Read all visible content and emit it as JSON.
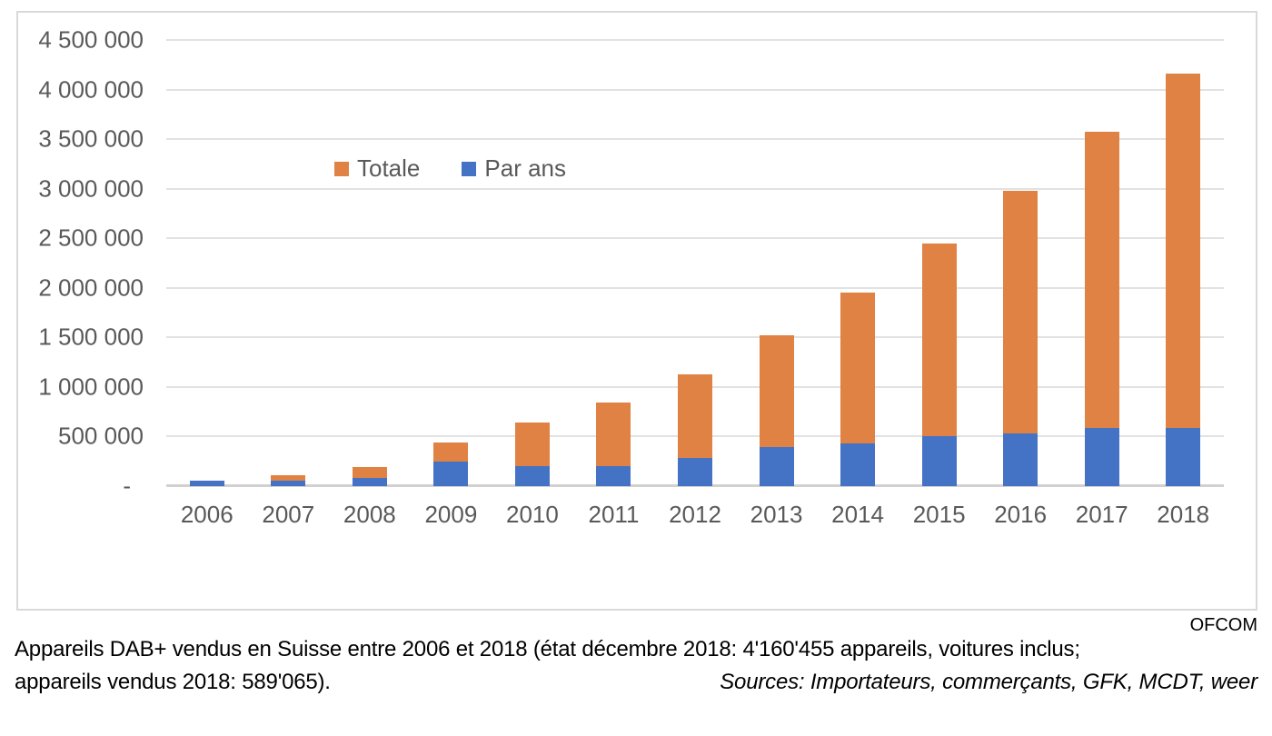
{
  "chart": {
    "source_label": "OFCOM",
    "legend": [
      {
        "id": "totale",
        "label": "Totale",
        "color": "#DF8243"
      },
      {
        "id": "par-ans",
        "label": "Par ans",
        "color": "#4472C4"
      }
    ],
    "y_axis": {
      "tick_labels": [
        "4 500 000",
        "4 000 000",
        "3 500 000",
        "3 000 000",
        "2 500 000",
        "2 000 000",
        "1 500 000",
        "1 000 000",
        "500 000",
        "-"
      ],
      "max": 4500000,
      "step": 500000
    }
  },
  "chart_data": {
    "type": "bar",
    "subtype": "overlapped-cumulative",
    "title": "",
    "xlabel": "",
    "ylabel": "",
    "ylim": [
      0,
      4500000
    ],
    "grid": true,
    "legend_position": "top-inside-left",
    "categories": [
      "2006",
      "2007",
      "2008",
      "2009",
      "2010",
      "2011",
      "2012",
      "2013",
      "2014",
      "2015",
      "2016",
      "2017",
      "2018"
    ],
    "series": [
      {
        "name": "Totale",
        "color": "#DF8243",
        "meaning": "cumulative total of DAB+ devices sold (bar top equals this value)",
        "values": [
          58000,
          113000,
          193000,
          438000,
          638000,
          843000,
          1123000,
          1518000,
          1948000,
          2448000,
          2983000,
          3571390,
          4160455
        ]
      },
      {
        "name": "Par ans",
        "color": "#4472C4",
        "meaning": "devices sold per year (drawn from baseline, in front of Totale)",
        "values": [
          58000,
          55000,
          80000,
          245000,
          200000,
          205000,
          280000,
          395000,
          430000,
          500000,
          535000,
          588390,
          589065
        ]
      }
    ]
  },
  "caption": {
    "line1": "Appareils DAB+ vendus en Suisse entre 2006 et 2018 (état décembre 2018: 4'160'455 appareils, voitures inclus;",
    "line2_left": "appareils vendus 2018: 589'065).",
    "sources": "Sources: Importateurs, commerçants, GFK, MCDT, weer"
  }
}
